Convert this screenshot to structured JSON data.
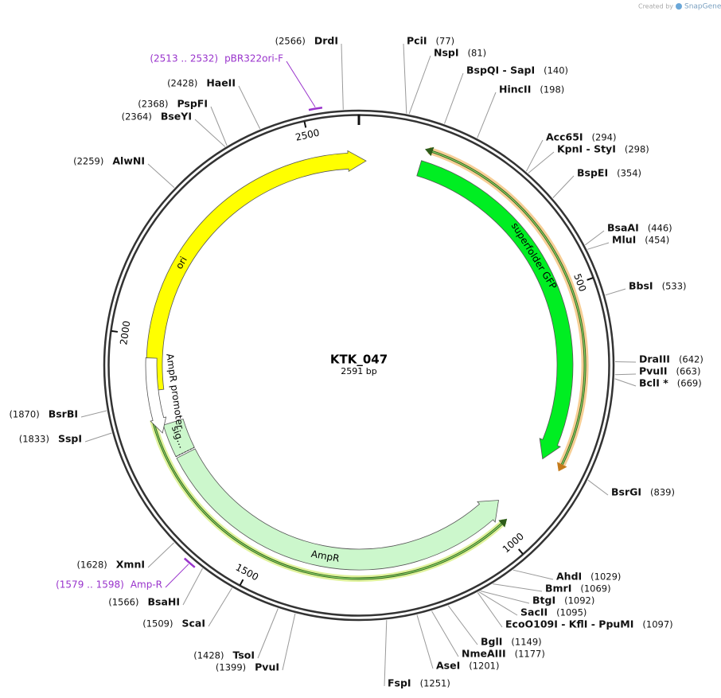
{
  "header": {
    "credit": "Created by",
    "brand": "SnapGene"
  },
  "map": {
    "name": "KTK_047",
    "length": "2591 bp",
    "ticks": [
      "500",
      "1000",
      "1500",
      "2000",
      "2500"
    ],
    "features": [
      {
        "label": "ori"
      },
      {
        "label": "superfolder GFP"
      },
      {
        "label": "AmpR"
      },
      {
        "label": "sig…"
      },
      {
        "label": "AmpR promoter"
      }
    ],
    "primers": [
      {
        "range": "(1579 .. 1598)",
        "name": "Amp-R"
      },
      {
        "range": "(2513 .. 2532)",
        "name": "pBR322ori-F"
      }
    ],
    "sites": [
      {
        "name": "PciI",
        "position": "(77)"
      },
      {
        "name": "NspI",
        "position": "(81)"
      },
      {
        "name": "BspQI - SapI",
        "position": "(140)"
      },
      {
        "name": "HincII",
        "position": "(198)"
      },
      {
        "name": "Acc65I",
        "position": "(294)"
      },
      {
        "name": "KpnI - StyI",
        "position": "(298)"
      },
      {
        "name": "BspEI",
        "position": "(354)"
      },
      {
        "name": "BsaAI",
        "position": "(446)"
      },
      {
        "name": "MluI",
        "position": "(454)"
      },
      {
        "name": "BbsI",
        "position": "(533)"
      },
      {
        "name": "DraIII",
        "position": "(642)"
      },
      {
        "name": "PvuII",
        "position": "(663)"
      },
      {
        "name": "BclI *",
        "position": "(669)"
      },
      {
        "name": "BsrGI",
        "position": "(839)"
      },
      {
        "name": "AhdI",
        "position": "(1029)"
      },
      {
        "name": "BmrI",
        "position": "(1069)"
      },
      {
        "name": "BtgI",
        "position": "(1092)"
      },
      {
        "name": "SacII",
        "position": "(1095)"
      },
      {
        "name": "EcoO109I - KflI - PpuMI",
        "position": "(1097)"
      },
      {
        "name": "BglI",
        "position": "(1149)"
      },
      {
        "name": "NmeAIII",
        "position": "(1177)"
      },
      {
        "name": "AseI",
        "position": "(1201)"
      },
      {
        "name": "FspI",
        "position": "(1251)"
      },
      {
        "name": "PvuI",
        "position": "(1399)"
      },
      {
        "name": "TsoI",
        "position": "(1428)"
      },
      {
        "name": "ScaI",
        "position": "(1509)"
      },
      {
        "name": "BsaHI",
        "position": "(1566)"
      },
      {
        "name": "XmnI",
        "position": "(1628)"
      },
      {
        "name": "SspI",
        "position": "(1833)"
      },
      {
        "name": "BsrBI",
        "position": "(1870)"
      },
      {
        "name": "AlwNI",
        "position": "(2259)"
      },
      {
        "name": "BseYI",
        "position": "(2364)"
      },
      {
        "name": "PspFI",
        "position": "(2368)"
      },
      {
        "name": "HaeII",
        "position": "(2428)"
      },
      {
        "name": "DrdI",
        "position": "(2566)"
      }
    ]
  }
}
